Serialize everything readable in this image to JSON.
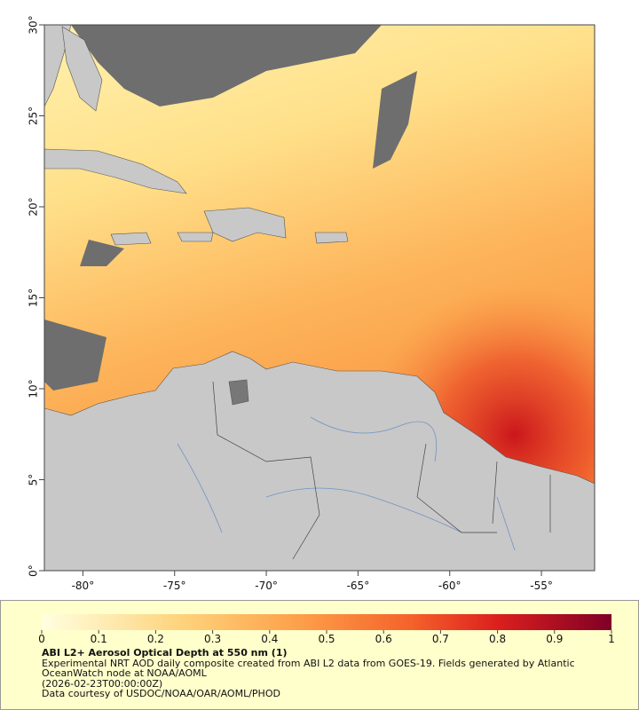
{
  "chart_data": {
    "type": "map",
    "xlim": [
      -82.1,
      -52.1
    ],
    "ylim": [
      0,
      30
    ],
    "xticks": [
      {
        "value": -80,
        "label": "-80°"
      },
      {
        "value": -75,
        "label": "-75°"
      },
      {
        "value": -70,
        "label": "-70°"
      },
      {
        "value": -65,
        "label": "-65°"
      },
      {
        "value": -60,
        "label": "-60°"
      },
      {
        "value": -55,
        "label": "-55°"
      }
    ],
    "yticks": [
      {
        "value": 0,
        "label": "0°"
      },
      {
        "value": 5,
        "label": "5°"
      },
      {
        "value": 10,
        "label": "10°"
      },
      {
        "value": 15,
        "label": "15°"
      },
      {
        "value": 20,
        "label": "20°"
      },
      {
        "value": 25,
        "label": "25°"
      },
      {
        "value": 30,
        "label": "30°"
      }
    ],
    "colorbar": {
      "lim": [
        0,
        1
      ],
      "ticks": [
        0,
        0.1,
        0.2,
        0.3,
        0.4,
        0.5,
        0.6,
        0.7,
        0.8,
        0.9,
        1
      ]
    },
    "title": "ABI L2+ Aerosol Optical Depth at 550 nm (1)",
    "description": "Experimental NRT AOD daily composite created from ABI L2 data from GOES-19. Fields generated by Atlantic OceanWatch node at NOAA/AOML",
    "timestamp": "(2026-02-23T00:00:00Z)",
    "credit": "Data courtesy of USDOC/NOAA/OAR/AOML/PHOD"
  }
}
